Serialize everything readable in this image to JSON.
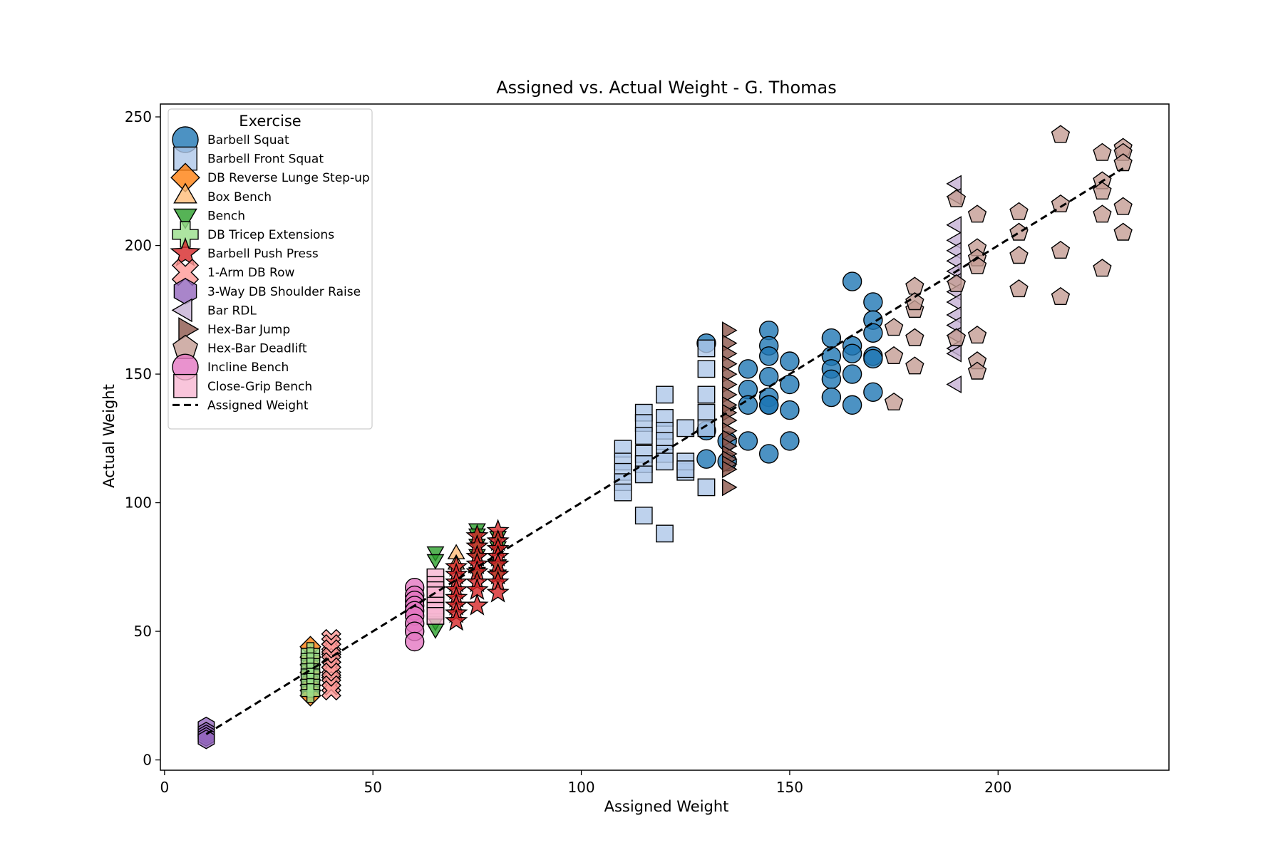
{
  "chart_data": {
    "type": "scatter",
    "title": "Assigned vs. Actual Weight - G. Thomas",
    "xlabel": "Assigned Weight",
    "ylabel": "Actual Weight",
    "xlim": [
      -1,
      241
    ],
    "ylim": [
      -4,
      255
    ],
    "xticks": [
      "0",
      "50",
      "100",
      "150",
      "200"
    ],
    "yticks": [
      "0",
      "50",
      "100",
      "150",
      "200",
      "250"
    ],
    "grid": false,
    "legend_title": "Exercise",
    "legend_position": "top-left",
    "series": [
      {
        "name": "Barbell Squat",
        "marker": "circle",
        "color": "#1f77b4",
        "x": [
          130,
          130,
          130,
          135,
          135,
          140,
          140,
          140,
          140,
          145,
          145,
          145,
          145,
          145,
          145,
          145,
          145,
          150,
          150,
          150,
          150,
          160,
          160,
          160,
          160,
          160,
          165,
          165,
          165,
          165,
          165,
          170,
          170,
          170,
          170,
          170,
          170
        ],
        "y": [
          162,
          128,
          117,
          124,
          116,
          152,
          144,
          138,
          124,
          167,
          161,
          157,
          149,
          141,
          138,
          119,
          138,
          155,
          146,
          136,
          124,
          164,
          157,
          152,
          148,
          141,
          186,
          161,
          158,
          150,
          138,
          178,
          171,
          166,
          157,
          143,
          156
        ]
      },
      {
        "name": "Barbell Front Squat",
        "marker": "square",
        "color": "#aec7e8",
        "x": [
          110,
          110,
          110,
          110,
          110,
          115,
          115,
          115,
          115,
          115,
          115,
          115,
          120,
          120,
          120,
          120,
          120,
          120,
          120,
          125,
          125,
          125,
          125,
          130,
          130,
          130,
          130,
          130,
          130
        ],
        "y": [
          121,
          116,
          112,
          108,
          104,
          135,
          131,
          126,
          119,
          115,
          111,
          95,
          88,
          142,
          133,
          128,
          124,
          119,
          116,
          112,
          129,
          116,
          113,
          160,
          152,
          142,
          135,
          129,
          106
        ]
      },
      {
        "name": "DB Reverse Lunge Step-up",
        "marker": "diamond",
        "color": "#ff7f0e",
        "x": [
          35,
          35,
          35,
          35,
          35,
          35,
          35,
          35
        ],
        "y": [
          44,
          40,
          37,
          34,
          31,
          29,
          27,
          25
        ]
      },
      {
        "name": "Box Bench",
        "marker": "triangle-up",
        "color": "#ffbb78",
        "x": [
          70,
          70
        ],
        "y": [
          80,
          76
        ]
      },
      {
        "name": "Bench",
        "marker": "triangle-down",
        "color": "#2ca02c",
        "x": [
          65,
          65,
          65,
          65,
          75,
          75,
          75,
          75,
          75,
          80,
          80,
          80,
          80
        ],
        "y": [
          81,
          78,
          54,
          51,
          90,
          88,
          84,
          80,
          73,
          87,
          83,
          76,
          72
        ]
      },
      {
        "name": "DB Tricep Extensions",
        "marker": "plus",
        "color": "#98df8a",
        "x": [
          35,
          35,
          35,
          35,
          35,
          35,
          35,
          35,
          35
        ],
        "y": [
          42,
          40,
          38,
          36,
          34,
          32,
          30,
          28,
          26
        ]
      },
      {
        "name": "Barbell Push Press",
        "marker": "star",
        "color": "#d62728",
        "x": [
          70,
          70,
          70,
          70,
          70,
          70,
          70,
          70,
          75,
          75,
          75,
          75,
          75,
          75,
          75,
          75,
          80,
          80,
          80,
          80,
          80,
          80,
          80,
          80
        ],
        "y": [
          75,
          72,
          69,
          66,
          63,
          60,
          57,
          54,
          87,
          83,
          79,
          76,
          73,
          69,
          66,
          60,
          89,
          85,
          82,
          79,
          76,
          72,
          69,
          65
        ]
      },
      {
        "name": "1-Arm DB Row",
        "marker": "x",
        "color": "#ff9896",
        "x": [
          40,
          40,
          40,
          40,
          40,
          40,
          40,
          40,
          40,
          40
        ],
        "y": [
          47,
          45,
          43,
          40,
          38,
          36,
          34,
          31,
          29,
          27
        ]
      },
      {
        "name": "3-Way DB Shoulder Raise",
        "marker": "hexagon",
        "color": "#9467bd",
        "x": [
          10,
          10,
          10,
          10,
          10
        ],
        "y": [
          13,
          11,
          10,
          9,
          8
        ]
      },
      {
        "name": "Bar RDL",
        "marker": "triangle-left",
        "color": "#c5b0d5",
        "x": [
          190,
          190,
          190,
          190,
          190,
          190,
          190,
          190,
          190,
          190,
          190,
          190,
          190,
          190,
          190,
          190
        ],
        "y": [
          224,
          219,
          208,
          202,
          198,
          194,
          190,
          186,
          182,
          178,
          173,
          169,
          165,
          160,
          158,
          146
        ]
      },
      {
        "name": "Hex-Bar Jump",
        "marker": "triangle-right",
        "color": "#8c564b",
        "x": [
          135,
          135,
          135,
          135,
          135,
          135,
          135,
          135,
          135,
          135,
          135,
          135,
          135,
          135,
          135,
          135,
          135,
          135
        ],
        "y": [
          167,
          162,
          158,
          154,
          150,
          146,
          142,
          138,
          135,
          132,
          128,
          125,
          122,
          119,
          117,
          115,
          113,
          106
        ]
      },
      {
        "name": "Hex-Bar Deadlift",
        "marker": "pentagon",
        "color": "#c49c94",
        "x": [
          175,
          175,
          175,
          180,
          180,
          180,
          180,
          180,
          190,
          190,
          190,
          195,
          195,
          195,
          195,
          195,
          195,
          195,
          205,
          205,
          205,
          205,
          215,
          215,
          215,
          215,
          225,
          225,
          225,
          225,
          225,
          230,
          230,
          230,
          230,
          230
        ],
        "y": [
          168,
          157,
          139,
          184,
          175,
          164,
          153,
          178,
          218,
          185,
          164,
          212,
          199,
          195,
          192,
          165,
          155,
          151,
          213,
          205,
          196,
          183,
          243,
          216,
          198,
          180,
          236,
          225,
          221,
          212,
          191,
          238,
          236,
          232,
          215,
          205
        ]
      },
      {
        "name": "Incline Bench",
        "marker": "circle",
        "color": "#e377c2",
        "x": [
          60,
          60,
          60,
          60,
          60,
          60,
          60,
          60,
          60
        ],
        "y": [
          67,
          64,
          62,
          60,
          58,
          56,
          53,
          50,
          46
        ]
      },
      {
        "name": "Close-Grip Bench",
        "marker": "square",
        "color": "#f7b6d2",
        "x": [
          65,
          65,
          65,
          65,
          65,
          65,
          65
        ],
        "y": [
          71,
          68,
          66,
          64,
          60,
          58,
          56
        ]
      }
    ],
    "reference_line": {
      "name": "Assigned Weight",
      "style": "dashed",
      "color": "#000000",
      "x": [
        10,
        230
      ],
      "y": [
        10,
        230
      ]
    }
  }
}
